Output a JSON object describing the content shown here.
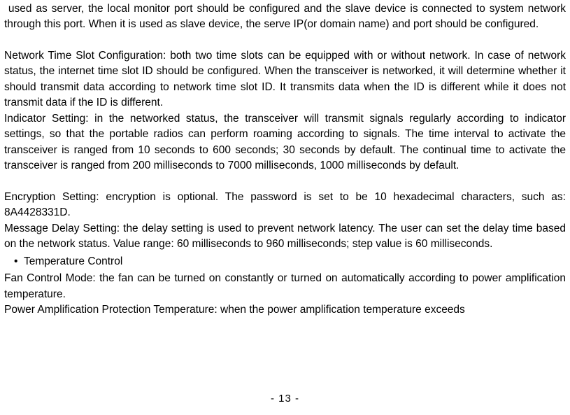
{
  "p1": " used as server, the local monitor port should be configured and the slave device is connected to system network through this port. When it is used as slave device, the serve IP(or domain name) and port should be configured.",
  "p2": "Network Time Slot Configuration: both two time slots can be equipped with or without network. In case of network status, the internet time slot ID should be configured. When the transceiver is networked, it will determine whether it should transmit data according to network time slot ID. It transmits data when the ID is different while it does not transmit data if the ID is different.",
  "p3": "Indicator Setting: in the networked status, the transceiver will transmit signals regularly according to indicator settings, so that the portable radios can perform roaming according to signals. The time interval to activate the transceiver is ranged from 10 seconds to 600 seconds; 30 seconds by default. The continual time to activate the transceiver is ranged from 200 milliseconds to 7000 milliseconds, 1000 milliseconds by default.",
  "p4": "Encryption Setting: encryption is optional. The password is set to be 10 hexadecimal characters, such as: 8A4428331D.",
  "p5": "Message Delay Setting: the delay setting is used to prevent network latency. The user can set the delay time based on the network status. Value range: 60 milliseconds to 960 milliseconds; step value is 60 milliseconds.",
  "bullet": "Temperature Control",
  "p6": "Fan Control Mode: the fan can be turned on constantly or turned on automatically according to power amplification temperature.",
  "p7": "Power Amplification Protection Temperature: when the power amplification temperature exceeds",
  "pagenum": "- 13 -"
}
